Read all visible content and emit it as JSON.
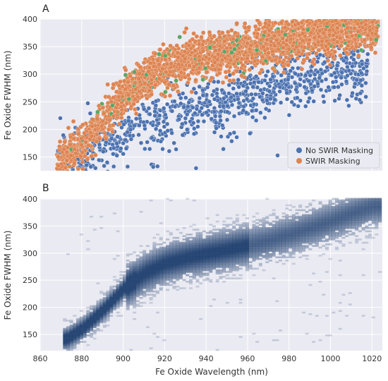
{
  "chart_data": [
    {
      "panel_label": "A",
      "type": "scatter",
      "ylabel": "Fe Oxide FWHM (nm)",
      "xlim": [
        860,
        1025
      ],
      "ylim": [
        125,
        400
      ],
      "yticks": [
        150,
        200,
        250,
        300,
        350,
        400
      ],
      "grid": true,
      "legend_position": "bottom-right",
      "series": [
        {
          "name": "No SWIR Masking",
          "color": "#4c72b0",
          "ridge": [
            [
              870,
              135
            ],
            [
              880,
              150
            ],
            [
              890,
              168
            ],
            [
              900,
              188
            ],
            [
              910,
              205
            ],
            [
              920,
              218
            ],
            [
              930,
              228
            ],
            [
              940,
              240
            ],
            [
              950,
              250
            ],
            [
              960,
              262
            ],
            [
              970,
              272
            ],
            [
              980,
              285
            ],
            [
              990,
              296
            ],
            [
              1000,
              305
            ]
          ],
          "band_width": 55
        },
        {
          "name": "SWIR Masking",
          "color": "#dd8452",
          "ridge": [
            [
              870,
              140
            ],
            [
              880,
              170
            ],
            [
              890,
              215
            ],
            [
              900,
              260
            ],
            [
              910,
              290
            ],
            [
              920,
              310
            ],
            [
              930,
              322
            ],
            [
              940,
              332
            ],
            [
              950,
              340
            ],
            [
              960,
              348
            ],
            [
              970,
              356
            ],
            [
              980,
              362
            ],
            [
              990,
              368
            ],
            [
              1000,
              374
            ],
            [
              1010,
              380
            ],
            [
              1020,
              386
            ]
          ],
          "band_width": 50
        }
      ]
    },
    {
      "panel_label": "B",
      "type": "heatmap",
      "xlabel": "Fe Oxide Wavelength (nm)",
      "ylabel": "Fe Oxide FWHM (nm)",
      "xlim": [
        860,
        1025
      ],
      "ylim": [
        120,
        400
      ],
      "xticks": [
        860,
        880,
        900,
        920,
        940,
        960,
        980,
        1000,
        1020
      ],
      "yticks": [
        150,
        200,
        250,
        300,
        350,
        400
      ],
      "color": "#1f3f6e",
      "ridge": [
        [
          872,
          140
        ],
        [
          880,
          160
        ],
        [
          890,
          195
        ],
        [
          900,
          235
        ],
        [
          910,
          262
        ],
        [
          920,
          280
        ],
        [
          930,
          290
        ],
        [
          940,
          298
        ],
        [
          950,
          305
        ],
        [
          960,
          313
        ],
        [
          970,
          322
        ],
        [
          980,
          333
        ],
        [
          990,
          345
        ],
        [
          1000,
          358
        ],
        [
          1010,
          372
        ],
        [
          1020,
          385
        ]
      ]
    }
  ]
}
